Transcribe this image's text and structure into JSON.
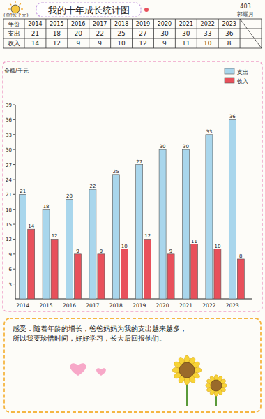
{
  "header": {
    "title": "我的十年成长统计图",
    "class_info": [
      "403",
      "郭耀月"
    ]
  },
  "table": {
    "unit": "(单位:千元)",
    "header": [
      "年份",
      "2014",
      "2015",
      "2016",
      "2017",
      "2018",
      "2019",
      "2020",
      "2021",
      "2022",
      "2023"
    ],
    "rows": [
      [
        "支出",
        21,
        18,
        20,
        22,
        25,
        27,
        30,
        30,
        33,
        36
      ],
      [
        "收入",
        14,
        12,
        9,
        9,
        10,
        12,
        9,
        11,
        10,
        8
      ]
    ]
  },
  "chart_data": {
    "type": "bar",
    "y_label": "金额/千元",
    "categories": [
      "2014",
      "2015",
      "2016",
      "2017",
      "2018",
      "2019",
      "2020",
      "2021",
      "2022",
      "2023"
    ],
    "series": [
      {
        "name": "支出",
        "color": "#a9d6ec",
        "values": [
          21,
          18,
          20,
          22,
          25,
          27,
          30,
          30,
          33,
          36
        ]
      },
      {
        "name": "收入",
        "color": "#e8505b",
        "values": [
          14,
          12,
          9,
          9,
          10,
          12,
          9,
          11,
          10,
          8
        ]
      }
    ],
    "ylim": [
      0,
      39
    ],
    "yticks": [
      3,
      6,
      9,
      12,
      15,
      18,
      21,
      24,
      27,
      30,
      33,
      36,
      39
    ],
    "grid": false,
    "legend": "top-right",
    "data_labels": true
  },
  "note": {
    "lines": [
      "感受：随着年龄的增长，爸爸妈妈为我的支出越来越多，",
      "所以我要珍惜时间，好好学习，长大后回报他们。"
    ]
  }
}
